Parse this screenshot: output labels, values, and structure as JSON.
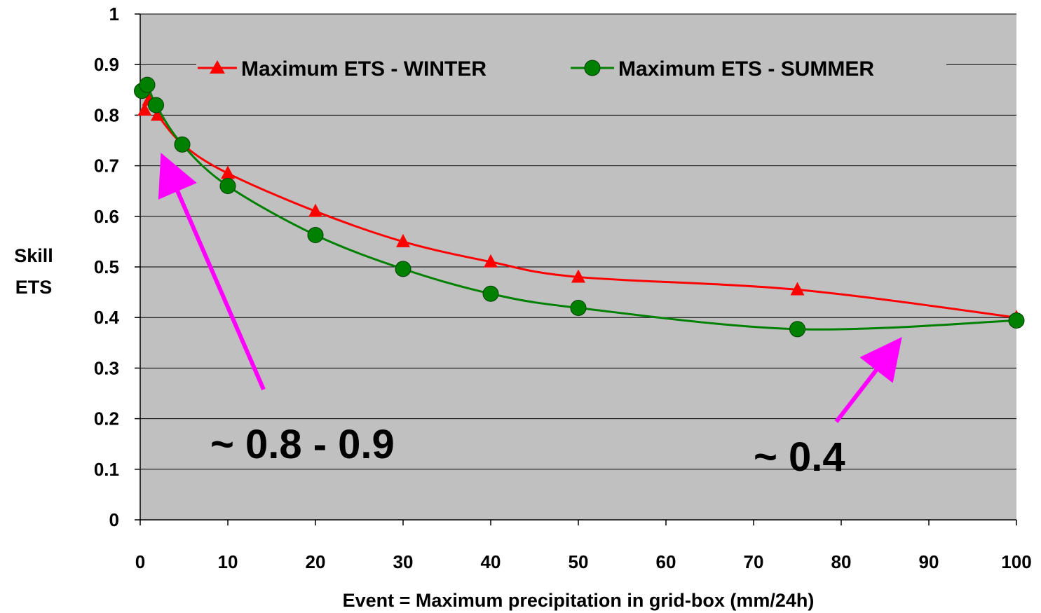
{
  "chart_data": {
    "type": "line",
    "xlabel": "Event = Maximum precipitation in grid-box (mm/24h)",
    "ylabel_lines": [
      "Skill",
      "ETS"
    ],
    "xlim": [
      0,
      100
    ],
    "ylim": [
      0,
      1
    ],
    "x_ticks": [
      0,
      10,
      20,
      30,
      40,
      50,
      60,
      70,
      80,
      90,
      100
    ],
    "y_ticks": [
      0,
      0.1,
      0.2,
      0.3,
      0.4,
      0.5,
      0.6,
      0.7,
      0.8,
      0.9,
      1
    ],
    "y_tick_labels": [
      "0",
      "0.1",
      "0.2",
      "0.3",
      "0.4",
      "0.5",
      "0.6",
      "0.7",
      "0.8",
      "0.9",
      "1"
    ],
    "grid": "horizontal",
    "plot_background": "#c0c0c0",
    "legend_position": "top-center",
    "series": [
      {
        "name": "Maximum ETS - WINTER",
        "color": "#ff0000",
        "marker": "triangle",
        "x": [
          0.5,
          1,
          2,
          5,
          10,
          20,
          30,
          40,
          50,
          75,
          100
        ],
        "y": [
          0.81,
          0.83,
          0.8,
          0.74,
          0.685,
          0.61,
          0.55,
          0.51,
          0.48,
          0.455,
          0.4
        ]
      },
      {
        "name": "Maximum ETS - SUMMER",
        "color": "#008000",
        "marker": "circle",
        "x": [
          0.2,
          0.8,
          1.8,
          4.8,
          10,
          20,
          30,
          40,
          50,
          75,
          100
        ],
        "y": [
          0.848,
          0.86,
          0.82,
          0.742,
          0.66,
          0.563,
          0.496,
          0.447,
          0.419,
          0.377,
          0.394
        ]
      }
    ],
    "annotations": [
      {
        "text": "~ 0.8 - 0.9",
        "color": "#000000"
      },
      {
        "text": "~ 0.4",
        "color": "#000000"
      }
    ],
    "arrow_color": "#ff00ff"
  }
}
